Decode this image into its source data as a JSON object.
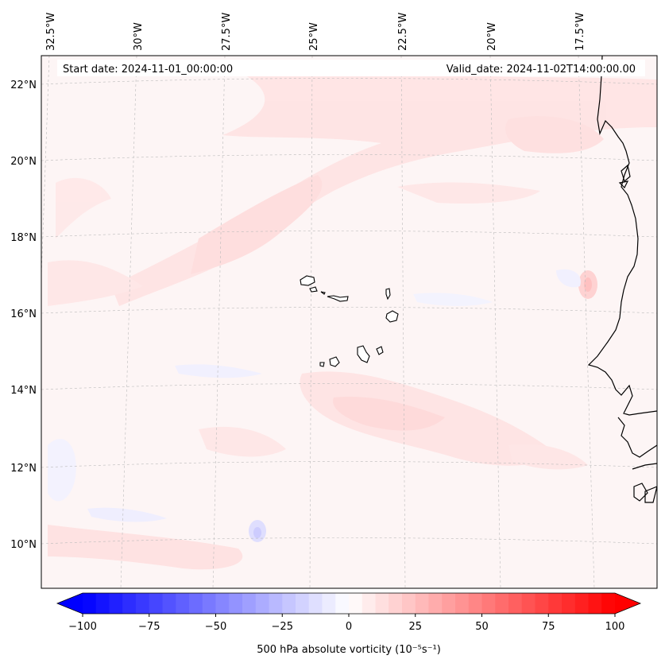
{
  "header": {
    "start_date": "Start date: 2024-11-01_00:00:00",
    "valid_date": "Valid_date: 2024-11-02T14:00:00.00"
  },
  "map": {
    "lon_labels": [
      "32.5°W",
      "30°W",
      "27.5°W",
      "25°W",
      "22.5°W",
      "20°W",
      "17.5°W"
    ],
    "lat_labels": [
      "22°N",
      "20°N",
      "18°N",
      "16°N",
      "14°N",
      "12°N",
      "10°N"
    ],
    "land_features": [
      "Cabo Verde islands",
      "West African coastline"
    ]
  },
  "colorbar": {
    "label": "500 hPa absolute vorticity (10⁻⁵s⁻¹)",
    "range": [
      -100,
      100
    ],
    "ticks": [
      "−100",
      "−75",
      "−50",
      "−25",
      "0",
      "25",
      "50",
      "75",
      "100"
    ],
    "low_color": "#0000ff",
    "mid_color": "#ffffff",
    "high_color": "#ff0000"
  }
}
